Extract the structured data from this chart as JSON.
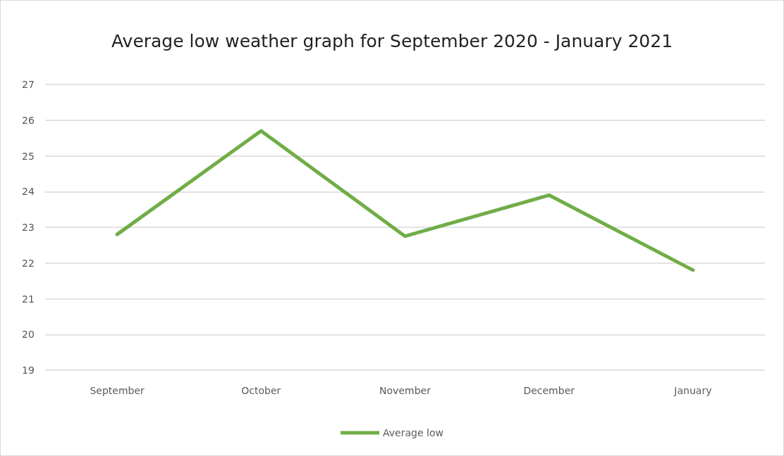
{
  "chart_data": {
    "type": "line",
    "title": "Average low weather graph for September 2020 - January 2021",
    "categories": [
      "September",
      "October",
      "November",
      "December",
      "January"
    ],
    "series": [
      {
        "name": "Average low",
        "color": "#70ad47",
        "values": [
          22.8,
          25.7,
          22.75,
          23.9,
          21.8
        ]
      }
    ],
    "ylim": [
      19,
      27
    ],
    "yticks": [
      19,
      20,
      21,
      22,
      23,
      24,
      25,
      26,
      27
    ],
    "grid": "y",
    "legend": "bottom",
    "marker": "none",
    "line_style": "solid"
  }
}
